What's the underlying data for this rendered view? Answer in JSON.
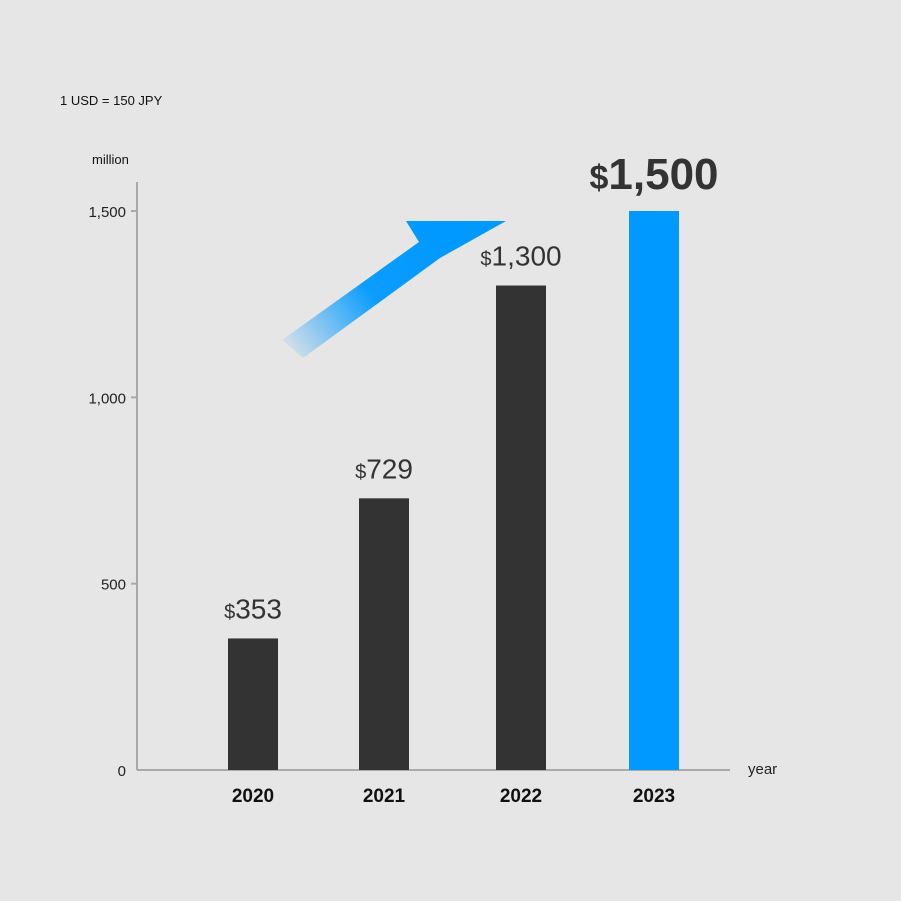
{
  "note": "1 USD = 150 JPY",
  "chart_data": {
    "type": "bar",
    "title": "",
    "ylabel": "million",
    "xlabel": "year",
    "categories": [
      "2020",
      "2021",
      "2022",
      "2023"
    ],
    "values": [
      353,
      729,
      1300,
      1500
    ],
    "value_labels": [
      "353",
      "729",
      "1,300",
      "1,500"
    ],
    "currency_symbol": "$",
    "ylim": [
      0,
      1500
    ],
    "yticks": [
      0,
      500,
      1000,
      1500
    ],
    "ytick_labels": [
      "0",
      "500",
      "1,000",
      "1,500"
    ],
    "grid": false,
    "annotation": "upward arrow pointing to 2023",
    "colors": {
      "bar": "#333333",
      "highlight": "#0099ff",
      "highlight_category": "2023"
    }
  }
}
